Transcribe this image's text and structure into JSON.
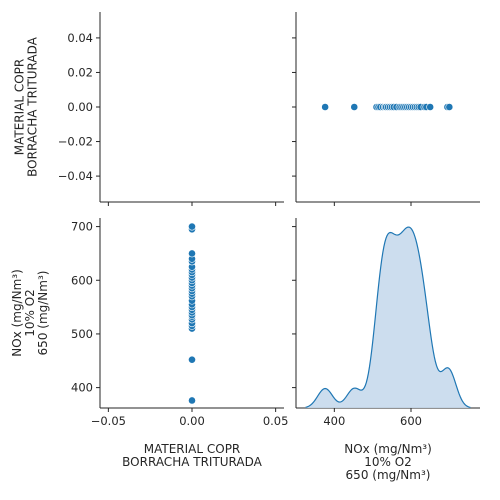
{
  "chart_data": {
    "type": "scatter",
    "variables": [
      "MATERIAL COPR\nBORRACHA TRITURADA",
      "NOx (mg/Nm³)\n10% O2\n650 (mg/Nm³)"
    ],
    "series": [
      {
        "x": [
          0,
          0,
          0,
          0,
          0,
          0,
          0,
          0,
          0,
          0,
          0,
          0,
          0,
          0,
          0,
          0,
          0,
          0,
          0,
          0,
          0,
          0,
          0,
          0,
          0,
          0,
          0,
          0,
          0,
          0
        ],
        "y": [
          376,
          452,
          510,
          515,
          520,
          527,
          532,
          535,
          540,
          545,
          550,
          555,
          562,
          570,
          575,
          580,
          585,
          590,
          595,
          600,
          605,
          610,
          615,
          620,
          625,
          635,
          640,
          650,
          695,
          700
        ]
      }
    ],
    "panels": {
      "top_left": {
        "ylim": [
          -0.055,
          0.055
        ],
        "yticks": [
          -0.04,
          -0.02,
          0.0,
          0.02,
          0.04
        ],
        "ytick_labels": [
          "−0.04",
          "−0.02",
          "0.00",
          "0.02",
          "0.04"
        ]
      },
      "bottom_left": {
        "xlim": [
          -0.055,
          0.055
        ],
        "xticks": [
          -0.05,
          0.0,
          0.05
        ],
        "xtick_labels": [
          "−0.05",
          "0.00",
          "0.05"
        ],
        "ylim": [
          362,
          716
        ],
        "yticks": [
          400,
          500,
          600,
          700
        ],
        "ytick_labels": [
          "400",
          "500",
          "600",
          "700"
        ]
      },
      "top_right": {
        "xlim": [
          300,
          780
        ]
      },
      "bottom_right": {
        "kind": "kde",
        "xlim": [
          300,
          780
        ],
        "xticks": [
          400,
          600
        ],
        "xtick_labels": [
          "400",
          "600"
        ],
        "fill": true
      }
    },
    "labels": {
      "left_y_top": [
        "MATERIAL COPR",
        "BORRACHA TRITURADA"
      ],
      "left_y_bottom": [
        "NOx (mg/Nm³)",
        "10% O2",
        "650 (mg/Nm³)"
      ],
      "bottom_x_left": [
        "MATERIAL COPR",
        "BORRACHA TRITURADA"
      ],
      "bottom_x_right": [
        "NOx (mg/Nm³)",
        "10% O2",
        "650 (mg/Nm³)"
      ]
    },
    "colors": {
      "marker": "#1f77b4",
      "kde_line": "#1f77b4",
      "kde_fill": "#c6d9ec"
    }
  }
}
